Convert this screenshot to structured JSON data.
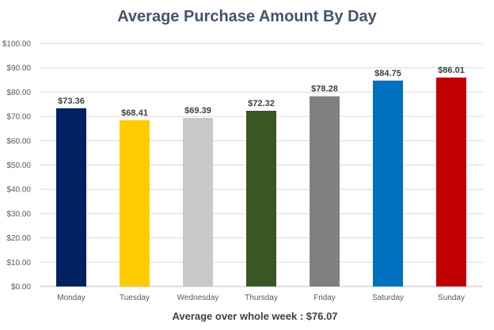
{
  "chart_data": {
    "type": "bar",
    "title": "Average Purchase Amount By Day",
    "categories": [
      "Monday",
      "Tuesday",
      "Wednesday",
      "Thursday",
      "Friday",
      "Saturday",
      "Sunday"
    ],
    "values": [
      73.36,
      68.41,
      69.39,
      72.32,
      78.28,
      84.75,
      86.01
    ],
    "data_labels": [
      "$73.36",
      "$68.41",
      "$69.39",
      "$72.32",
      "$78.28",
      "$84.75",
      "$86.01"
    ],
    "colors": [
      "#002060",
      "#ffcc00",
      "#c8c8c8",
      "#385723",
      "#808080",
      "#0070c0",
      "#c00000"
    ],
    "ylim": [
      0,
      100
    ],
    "yticks": [
      0,
      10,
      20,
      30,
      40,
      50,
      60,
      70,
      80,
      90,
      100
    ],
    "ytick_labels": [
      "$0.00",
      "$10.00",
      "$20.00",
      "$30.00",
      "$40.00",
      "$50.00",
      "$60.00",
      "$70.00",
      "$80.00",
      "$90.00",
      "$100.00"
    ],
    "xlabel": "",
    "ylabel": "",
    "grid": true,
    "legend": false
  },
  "footnote": "Average over whole week : $76.07"
}
